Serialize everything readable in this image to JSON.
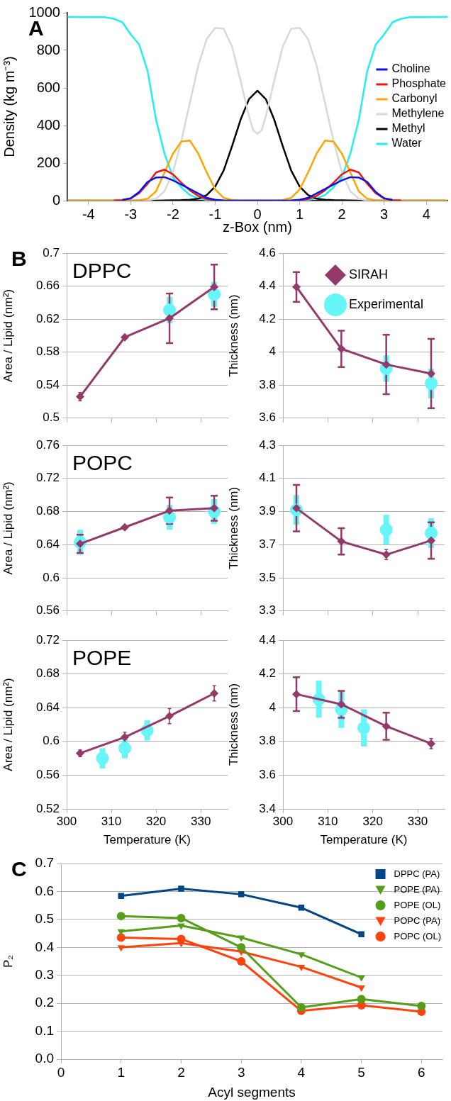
{
  "chart_data": [
    {
      "type": "line",
      "annotations": [
        "A"
      ],
      "xlabel": "z-Box (nm)",
      "ylabel": "Density (kg m⁻³)",
      "xlim": [
        -4.5,
        4.5
      ],
      "xticks": [
        -4,
        -3,
        -2,
        -1,
        0,
        1,
        2,
        3,
        4
      ],
      "ylim": [
        0,
        1000
      ],
      "yticks": [
        0,
        200,
        400,
        600,
        800,
        1000
      ],
      "grid": false,
      "legend": "right",
      "x": [
        -4.5,
        -4,
        -3.6,
        -3.4,
        -3.2,
        -3,
        -2.8,
        -2.6,
        -2.4,
        -2.2,
        -2,
        -1.8,
        -1.6,
        -1.4,
        -1.2,
        -1,
        -0.8,
        -0.6,
        -0.4,
        -0.2,
        0,
        0.2,
        0.4,
        0.6,
        0.8,
        1,
        1.2,
        1.4,
        1.6,
        1.8,
        2,
        2.2,
        2.4,
        2.6,
        2.8,
        3,
        3.2,
        3.4,
        3.6,
        4,
        4.5
      ],
      "series": [
        {
          "name": "Choline",
          "color": "#0a14e6",
          "values": [
            null,
            null,
            null,
            null,
            4,
            12,
            46,
            100,
            123,
            125,
            108,
            85,
            62,
            38,
            15,
            5,
            1,
            0,
            0,
            0,
            0,
            0,
            0,
            0,
            1,
            5,
            15,
            38,
            62,
            85,
            108,
            125,
            123,
            100,
            46,
            12,
            4,
            null,
            null,
            null,
            null
          ]
        },
        {
          "name": "Phosphate",
          "color": "#f01414",
          "values": [
            null,
            null,
            null,
            1,
            3,
            12,
            40,
            90,
            150,
            165,
            140,
            95,
            55,
            25,
            8,
            2,
            0,
            0,
            0,
            0,
            0,
            0,
            0,
            0,
            0,
            2,
            8,
            25,
            55,
            95,
            140,
            165,
            150,
            90,
            40,
            12,
            3,
            1,
            null,
            null,
            null
          ]
        },
        {
          "name": "Carbonyl",
          "color": "#ffa500",
          "values": [
            0,
            0,
            0,
            0,
            0,
            0,
            2,
            10,
            50,
            150,
            250,
            315,
            320,
            250,
            150,
            60,
            15,
            3,
            0,
            0,
            0,
            0,
            0,
            3,
            15,
            60,
            150,
            250,
            320,
            315,
            250,
            150,
            50,
            10,
            2,
            0,
            0,
            0,
            0,
            0,
            0
          ]
        },
        {
          "name": "Methylene",
          "color": "#d9d9d9",
          "x": [
            -4.5,
            -4,
            -3.6,
            -3.4,
            -3.2,
            -3,
            -2.8,
            -2.6,
            -2.4,
            -2.2,
            -2,
            -1.8,
            -1.6,
            -1.4,
            -1.2,
            -1,
            -0.8,
            -0.6,
            -0.4,
            -0.2,
            -0.1,
            0,
            0.1,
            0.2,
            0.4,
            0.6,
            0.8,
            1,
            1.2,
            1.4,
            1.6,
            1.8,
            2,
            2.2,
            2.4,
            2.6,
            2.8,
            3,
            3.2,
            3.4,
            3.6,
            4,
            4.5
          ],
          "values": [
            0,
            0,
            0,
            0,
            0,
            0,
            0,
            2,
            10,
            50,
            150,
            320,
            520,
            720,
            860,
            920,
            915,
            820,
            640,
            450,
            375,
            355,
            375,
            450,
            640,
            820,
            915,
            920,
            860,
            720,
            520,
            320,
            150,
            50,
            10,
            2,
            0,
            0,
            0,
            0,
            0,
            0,
            0
          ]
        },
        {
          "name": "Methyl",
          "color": "#000000",
          "values": [
            0,
            0,
            0,
            0,
            0,
            0,
            0,
            0,
            0,
            1,
            2,
            3,
            5,
            10,
            30,
            75,
            160,
            290,
            430,
            540,
            585,
            540,
            430,
            290,
            160,
            75,
            30,
            10,
            5,
            3,
            2,
            1,
            0,
            0,
            0,
            0,
            0,
            0,
            0,
            0,
            0
          ]
        },
        {
          "name": "Water",
          "color": "#22f0f0",
          "values": [
            978,
            976,
            976,
            968,
            950,
            885,
            830,
            690,
            430,
            250,
            125,
            70,
            30,
            12,
            4,
            1,
            0,
            0,
            0,
            0,
            0,
            0,
            0,
            0,
            0,
            1,
            4,
            12,
            30,
            70,
            125,
            250,
            430,
            690,
            830,
            885,
            950,
            968,
            976,
            976,
            978
          ]
        }
      ]
    },
    {
      "type": "line",
      "title": "DPPC",
      "annotations": [
        "B"
      ],
      "ylabel": "Area / Lipid (nm²)",
      "xlim": [
        300,
        336
      ],
      "xticks": [
        300,
        310,
        320,
        330
      ],
      "ylim": [
        0.5,
        0.7
      ],
      "yticks": [
        0.5,
        0.54,
        0.58,
        0.62,
        0.66,
        0.7
      ],
      "grid": "y",
      "tick_labels": "y",
      "series": [
        {
          "color": "#943a6a",
          "marker": "diamond",
          "x": [
            303,
            313,
            323,
            333
          ],
          "values": [
            0.526,
            0.598,
            0.621,
            0.659
          ],
          "errors": [
            0.005,
            0.002,
            0.03,
            0.027
          ]
        },
        {
          "type": "scatter",
          "color": "#66f5f8",
          "marker": "circle",
          "x": [
            323,
            333
          ],
          "values": [
            0.631,
            0.65
          ],
          "errors": [
            0.016,
            0.015
          ]
        }
      ]
    },
    {
      "type": "line",
      "ylabel": "Thickness (nm)",
      "xlim": [
        300,
        336
      ],
      "xticks": [
        300,
        310,
        320,
        330
      ],
      "ylim": [
        3.6,
        4.6
      ],
      "yticks": [
        3.6,
        3.8,
        4,
        4.2,
        4.4,
        4.6
      ],
      "grid": "y",
      "tick_labels": "y",
      "legend": "top right",
      "series": [
        {
          "name": "SIRAH",
          "color": "#943a6a",
          "marker": "diamond",
          "x": [
            303,
            313,
            323,
            333
          ],
          "values": [
            4.395,
            4.02,
            3.925,
            3.87
          ],
          "errors": [
            0.09,
            0.11,
            0.18,
            0.21
          ]
        },
        {
          "name": "Experimental",
          "type": "scatter",
          "color": "#66f5f8",
          "marker": "circle",
          "x": [
            323,
            333
          ],
          "values": [
            3.9,
            3.81
          ],
          "errors": [
            0.08,
            0.09
          ]
        }
      ]
    },
    {
      "type": "line",
      "title": "POPC",
      "ylabel": "Area / Lipid (nm²)",
      "xlim": [
        300,
        336
      ],
      "xticks": [
        300,
        310,
        320,
        330
      ],
      "ylim": [
        0.56,
        0.76
      ],
      "yticks": [
        0.56,
        0.6,
        0.64,
        0.68,
        0.72,
        0.76
      ],
      "grid": "y",
      "tick_labels": "y",
      "series": [
        {
          "color": "#943a6a",
          "marker": "diamond",
          "x": [
            303,
            313,
            323,
            333
          ],
          "values": [
            0.641,
            0.661,
            0.681,
            0.684
          ],
          "errors": [
            0.011,
            null,
            0.016,
            0.015
          ]
        },
        {
          "type": "scatter",
          "color": "#66f5f8",
          "marker": "circle",
          "x": [
            303,
            323,
            333
          ],
          "values": [
            0.643,
            0.673,
            0.68
          ],
          "errors": [
            0.015,
            0.015,
            0.015
          ]
        }
      ]
    },
    {
      "type": "line",
      "ylabel": "Thickness (nm)",
      "xlim": [
        300,
        336
      ],
      "xticks": [
        300,
        310,
        320,
        330
      ],
      "ylim": [
        3.3,
        4.3
      ],
      "yticks": [
        3.3,
        3.5,
        3.7,
        3.9,
        4.1,
        4.3
      ],
      "grid": "y",
      "tick_labels": "y",
      "series": [
        {
          "color": "#943a6a",
          "marker": "diamond",
          "x": [
            303,
            313,
            323,
            333
          ],
          "values": [
            3.92,
            3.72,
            3.64,
            3.725
          ],
          "errors": [
            0.14,
            0.08,
            0.03,
            0.11
          ]
        },
        {
          "type": "scatter",
          "color": "#66f5f8",
          "marker": "circle",
          "x": [
            303,
            323,
            333
          ],
          "values": [
            3.91,
            3.79,
            3.77
          ],
          "errors": [
            0.09,
            0.09,
            0.09
          ]
        }
      ]
    },
    {
      "type": "line",
      "title": "POPE",
      "xlabel": "Temperature (K)",
      "ylabel": "Area / Lipid (nm²)",
      "xlim": [
        300,
        336
      ],
      "xticks": [
        300,
        310,
        320,
        330
      ],
      "ylim": [
        0.52,
        0.72
      ],
      "yticks": [
        0.52,
        0.56,
        0.6,
        0.64,
        0.68,
        0.72
      ],
      "grid": "y",
      "series": [
        {
          "color": "#943a6a",
          "marker": "diamond",
          "x": [
            303,
            313,
            323,
            333
          ],
          "values": [
            0.586,
            0.605,
            0.63,
            0.657
          ],
          "errors": [
            0.004,
            0.006,
            0.009,
            0.009
          ]
        },
        {
          "type": "scatter",
          "color": "#66f5f8",
          "marker": "circle",
          "x": [
            308,
            313,
            318
          ],
          "values": [
            0.58,
            0.592,
            0.613
          ],
          "errors": [
            0.012,
            0.012,
            0.012
          ]
        }
      ]
    },
    {
      "type": "line",
      "xlabel": "Temperature (K)",
      "ylabel": "Thickness (nm)",
      "xlim": [
        300,
        336
      ],
      "xticks": [
        300,
        310,
        320,
        330
      ],
      "ylim": [
        3.4,
        4.4
      ],
      "yticks": [
        3.4,
        3.6,
        3.8,
        4,
        4.2,
        4.4
      ],
      "grid": "y",
      "series": [
        {
          "color": "#943a6a",
          "marker": "diamond",
          "x": [
            303,
            313,
            323,
            333
          ],
          "values": [
            4.08,
            4.02,
            3.89,
            3.787
          ],
          "errors": [
            0.1,
            0.08,
            0.08,
            0.03
          ]
        },
        {
          "type": "scatter",
          "color": "#66f5f8",
          "marker": "circle",
          "x": [
            308,
            313,
            318
          ],
          "values": [
            4.05,
            3.99,
            3.88
          ],
          "errors": [
            0.11,
            0.11,
            0.11
          ]
        }
      ]
    },
    {
      "type": "line",
      "annotations": [
        "C"
      ],
      "xlabel": "Acyl segments",
      "ylabel": "P₂",
      "xlim": [
        0,
        6.35
      ],
      "xticks": [
        0,
        1,
        2,
        3,
        4,
        5,
        6
      ],
      "ylim": [
        0,
        0.7
      ],
      "yticks": [
        {
          "value": 0,
          "label": "0.0"
        },
        0.1,
        0.2,
        0.3,
        0.4,
        0.5,
        0.6,
        0.7
      ],
      "grid": "y",
      "legend": "top right",
      "series": [
        {
          "name": "DPPC (PA)",
          "color": "#004586",
          "marker": "square",
          "x": [
            1,
            2,
            3,
            4,
            5
          ],
          "values": [
            0.584,
            0.61,
            0.59,
            0.542,
            0.447
          ]
        },
        {
          "name": "POPE (PA)",
          "color": "#579d1c",
          "marker": "triangle",
          "x": [
            1,
            2,
            3,
            4,
            5
          ],
          "values": [
            0.457,
            0.478,
            0.435,
            0.375,
            0.292
          ]
        },
        {
          "name": "POPE (OL)",
          "color": "#579d1c",
          "marker": "circle",
          "x": [
            1,
            2,
            3,
            4,
            5,
            6
          ],
          "values": [
            0.512,
            0.505,
            0.4,
            0.185,
            0.215,
            0.19
          ]
        },
        {
          "name": "POPC (PA)",
          "color": "#ff420e",
          "marker": "triangle",
          "x": [
            1,
            2,
            3,
            4,
            5
          ],
          "values": [
            0.4,
            0.415,
            0.385,
            0.33,
            0.256
          ]
        },
        {
          "name": "POPC (OL)",
          "color": "#ff420e",
          "marker": "circle",
          "x": [
            1,
            2,
            3,
            4,
            5,
            6
          ],
          "values": [
            0.435,
            0.43,
            0.35,
            0.173,
            0.193,
            0.17
          ]
        }
      ]
    }
  ]
}
